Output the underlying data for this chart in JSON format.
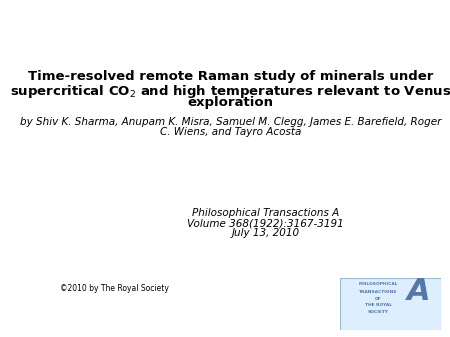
{
  "title_line1": "Time-resolved remote Raman study of minerals under",
  "title_line2": "supercritical CO$_2$ and high temperatures relevant to Venus",
  "title_line3": "exploration",
  "authors_line1": "by Shiv K. Sharma, Anupam K. Misra, Samuel M. Clegg, James E. Barefield, Roger",
  "authors_line2": "C. Wiens, and Tayro Acosta",
  "journal_line1": "Philosophical Transactions A",
  "journal_line2": "Volume 368(1922):3167-3191",
  "journal_line3": "July 13, 2010",
  "copyright": "©2010 by The Royal Society",
  "bg_color": "#ffffff",
  "title_fontsize": 9.5,
  "authors_fontsize": 7.5,
  "journal_fontsize": 7.5,
  "copyright_fontsize": 5.5,
  "logo_text_color": "#5577aa",
  "logo_bg_color": "#ddeeff",
  "logo_border_color": "#99bbcc"
}
